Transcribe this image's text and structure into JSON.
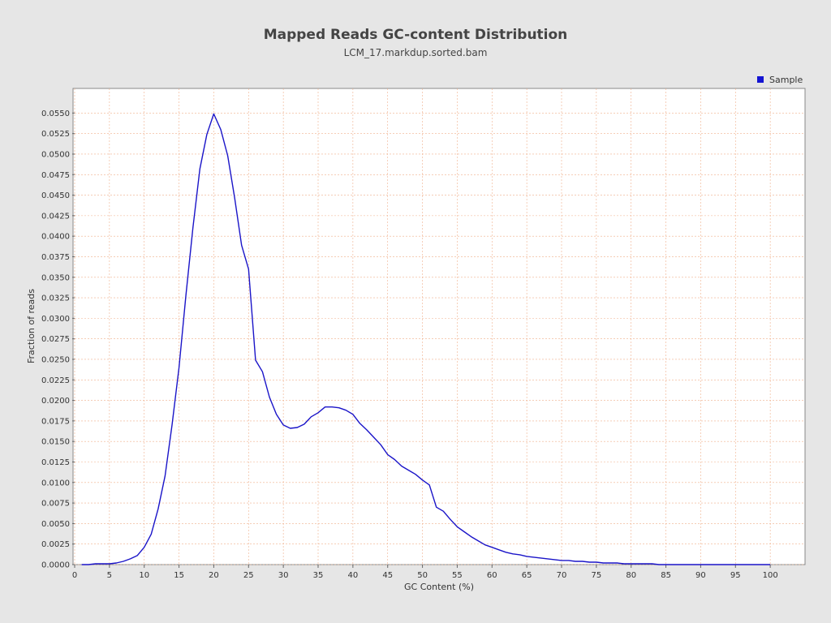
{
  "chart_data": {
    "type": "line",
    "title": "Mapped Reads GC-content Distribution",
    "subtitle": "LCM_17.markdup.sorted.bam",
    "xlabel": "GC Content (%)",
    "ylabel": "Fraction of reads",
    "xlim": [
      0,
      105
    ],
    "ylim": [
      0,
      0.058
    ],
    "x_ticks": [
      0,
      5,
      10,
      15,
      20,
      25,
      30,
      35,
      40,
      45,
      50,
      55,
      60,
      65,
      70,
      75,
      80,
      85,
      90,
      95,
      100
    ],
    "y_ticks": [
      "0.0000",
      "0.0025",
      "0.0050",
      "0.0075",
      "0.0100",
      "0.0125",
      "0.0150",
      "0.0175",
      "0.0200",
      "0.0225",
      "0.0250",
      "0.0275",
      "0.0300",
      "0.0325",
      "0.0350",
      "0.0375",
      "0.0400",
      "0.0425",
      "0.0450",
      "0.0475",
      "0.0500",
      "0.0525",
      "0.0550"
    ],
    "grid": true,
    "legend_position": "top-right",
    "colors": {
      "series": "#1a14c8",
      "grid": "#f0b08c",
      "legend_marker": "#1414d2"
    },
    "series": [
      {
        "name": "Sample",
        "x": [
          1,
          2,
          3,
          4,
          5,
          6,
          7,
          8,
          9,
          10,
          11,
          12,
          13,
          14,
          15,
          16,
          17,
          18,
          19,
          20,
          21,
          22,
          23,
          24,
          25,
          26,
          27,
          28,
          29,
          30,
          31,
          32,
          33,
          34,
          35,
          36,
          37,
          38,
          39,
          40,
          41,
          42,
          43,
          44,
          45,
          46,
          47,
          48,
          49,
          50,
          51,
          52,
          53,
          54,
          55,
          56,
          57,
          58,
          59,
          60,
          61,
          62,
          63,
          64,
          65,
          66,
          67,
          68,
          69,
          70,
          71,
          72,
          73,
          74,
          75,
          76,
          77,
          78,
          79,
          80,
          81,
          82,
          83,
          84,
          85,
          86,
          87,
          88,
          89,
          90,
          91,
          92,
          93,
          94,
          95,
          96,
          97,
          98,
          99,
          100
        ],
        "values": [
          0.0,
          0.0,
          0.0001,
          0.0001,
          0.0001,
          0.0002,
          0.0004,
          0.0007,
          0.0011,
          0.0021,
          0.0037,
          0.0068,
          0.0108,
          0.017,
          0.024,
          0.0328,
          0.041,
          0.0482,
          0.0524,
          0.0549,
          0.053,
          0.0498,
          0.0447,
          0.0389,
          0.036,
          0.0249,
          0.0235,
          0.0204,
          0.0183,
          0.017,
          0.0166,
          0.0167,
          0.0171,
          0.018,
          0.0185,
          0.0192,
          0.0192,
          0.0191,
          0.0188,
          0.0183,
          0.0172,
          0.0164,
          0.0155,
          0.0146,
          0.0134,
          0.0128,
          0.012,
          0.0115,
          0.011,
          0.0103,
          0.0097,
          0.007,
          0.0065,
          0.0055,
          0.0046,
          0.004,
          0.0034,
          0.0029,
          0.0024,
          0.0021,
          0.0018,
          0.0015,
          0.0013,
          0.0012,
          0.001,
          0.0009,
          0.0008,
          0.0007,
          0.0006,
          0.0005,
          0.0005,
          0.0004,
          0.0004,
          0.0003,
          0.0003,
          0.0002,
          0.0002,
          0.0002,
          0.0001,
          0.0001,
          0.0001,
          0.0001,
          0.0001,
          0.0,
          0.0,
          0.0,
          0.0,
          0.0,
          0.0,
          0.0,
          0.0,
          0.0,
          0.0,
          0.0,
          0.0,
          0.0,
          0.0,
          0.0,
          0.0,
          0.0
        ]
      }
    ]
  }
}
